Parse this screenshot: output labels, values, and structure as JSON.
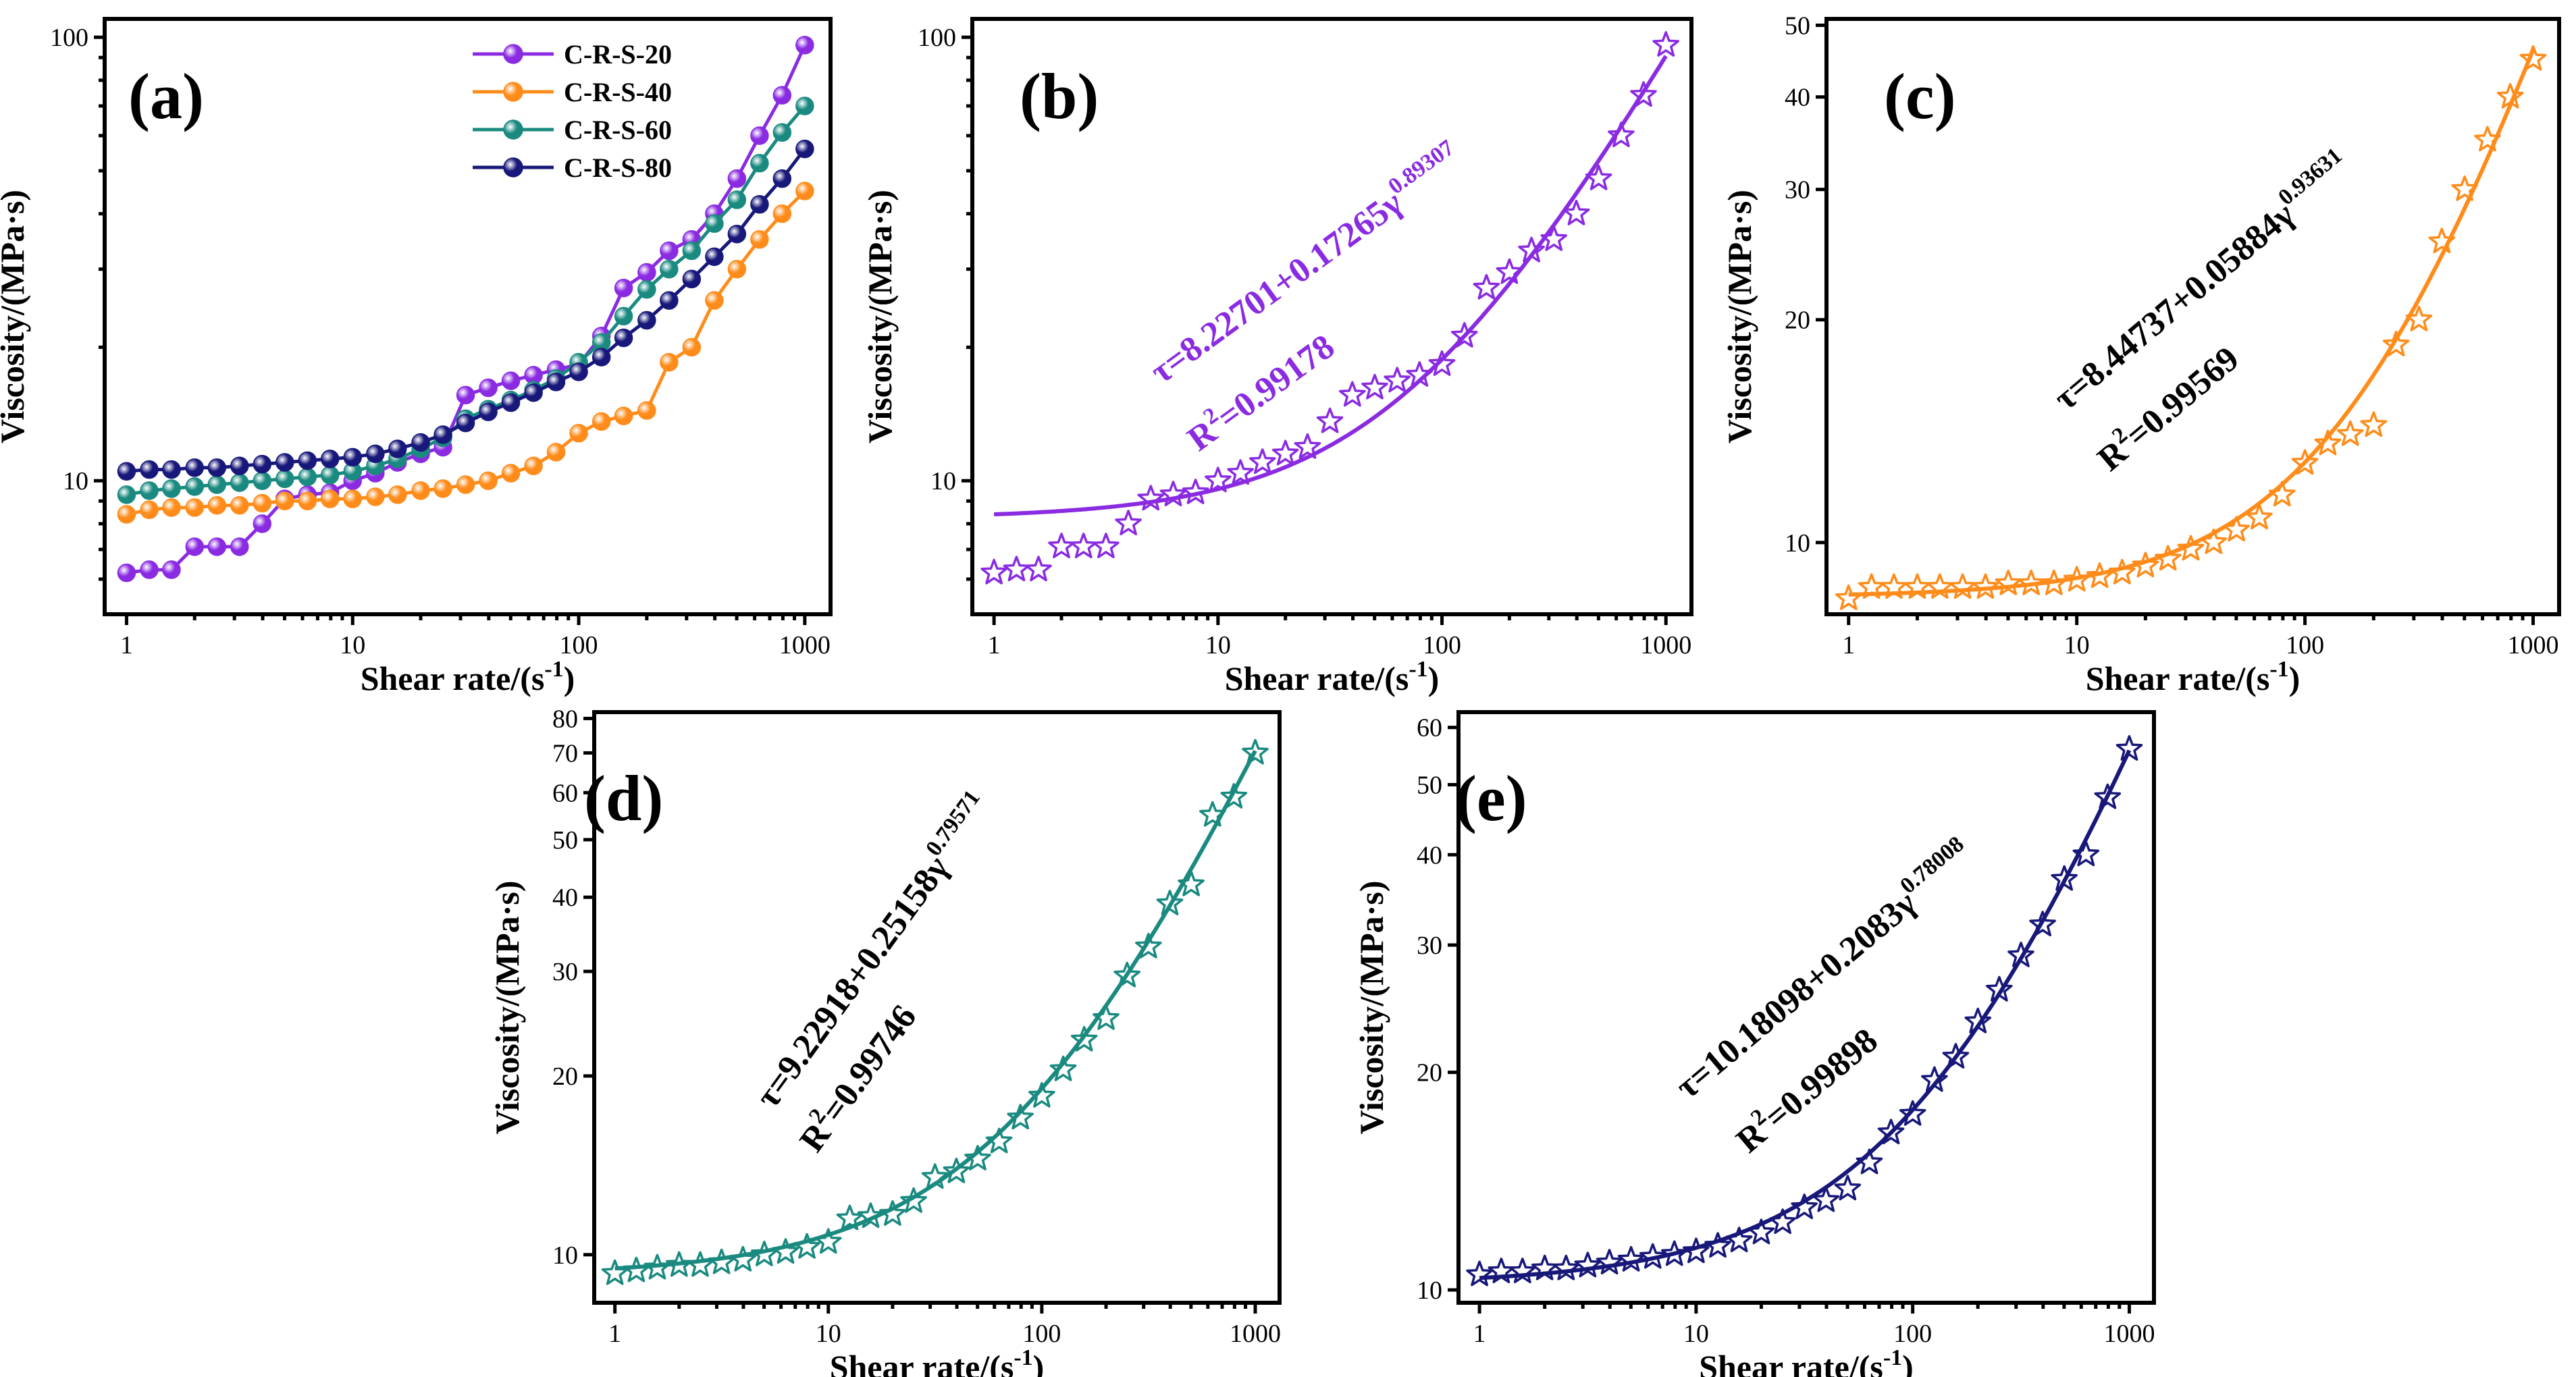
{
  "colors": {
    "C-R-S-20": "#8a2be2",
    "C-R-S-40": "#ff8c1a",
    "C-R-S-60": "#1a8a80",
    "C-R-S-80": "#18187a"
  },
  "chart_data": [
    {
      "id": "a",
      "type": "line",
      "panel_label": "(a)",
      "xlabel": "Shear rate/(s",
      "xlabel_sup": "-1",
      "xlabel_end": ")",
      "ylabel": "Viscosity/(MPa·s)",
      "xscale": "log",
      "yscale": "log",
      "xlim": [
        0.8,
        1300
      ],
      "ylim": [
        5,
        110
      ],
      "xticks": [
        1,
        10,
        100,
        1000
      ],
      "xtick_labels": [
        "1",
        "10",
        "100",
        "1000"
      ],
      "yticks": [
        10,
        100
      ],
      "ytick_labels": [
        "10",
        "100"
      ],
      "legend_position": "top-center",
      "x": [
        1,
        1.26,
        1.58,
        2,
        2.51,
        3.16,
        3.98,
        5.01,
        6.31,
        7.94,
        10,
        12.6,
        15.8,
        20,
        25.1,
        31.6,
        39.8,
        50.1,
        63.1,
        79.4,
        100,
        126,
        158,
        200,
        251,
        316,
        398,
        501,
        631,
        794,
        1000
      ],
      "series": [
        {
          "name": "C-R-S-20",
          "color_key": "C-R-S-20",
          "marker": "ball",
          "values": [
            6.2,
            6.3,
            6.3,
            7.1,
            7.1,
            7.1,
            8.0,
            9.1,
            9.3,
            9.4,
            10.0,
            10.4,
            11.0,
            11.5,
            11.9,
            15.6,
            16.2,
            16.8,
            17.3,
            17.8,
            18.3,
            21.2,
            27.2,
            29.5,
            33.0,
            35.0,
            40.0,
            48.0,
            60.0,
            74.0,
            96.0
          ]
        },
        {
          "name": "C-R-S-40",
          "color_key": "C-R-S-40",
          "marker": "ball",
          "values": [
            8.4,
            8.6,
            8.7,
            8.7,
            8.8,
            8.8,
            8.9,
            9.0,
            9.0,
            9.1,
            9.1,
            9.2,
            9.3,
            9.5,
            9.6,
            9.8,
            10.0,
            10.4,
            10.8,
            11.6,
            12.8,
            13.6,
            14.0,
            14.4,
            18.5,
            20.0,
            25.5,
            30.0,
            35.0,
            40.0,
            45.0
          ]
        },
        {
          "name": "C-R-S-60",
          "color_key": "C-R-S-60",
          "marker": "ball",
          "values": [
            9.3,
            9.5,
            9.6,
            9.7,
            9.8,
            9.9,
            10.0,
            10.1,
            10.2,
            10.3,
            10.5,
            10.8,
            11.2,
            11.8,
            12.5,
            13.8,
            14.5,
            15.2,
            16.0,
            17.0,
            18.5,
            20.5,
            23.5,
            27.0,
            30.0,
            33.0,
            38.0,
            43.0,
            52.0,
            61.0,
            70.0
          ]
        },
        {
          "name": "C-R-S-80",
          "color_key": "C-R-S-80",
          "marker": "ball",
          "values": [
            10.5,
            10.6,
            10.6,
            10.7,
            10.7,
            10.8,
            10.9,
            11.0,
            11.1,
            11.2,
            11.3,
            11.5,
            11.8,
            12.2,
            12.7,
            13.5,
            14.3,
            15.0,
            15.8,
            16.7,
            17.6,
            19.0,
            21.0,
            23.0,
            25.5,
            28.5,
            32.0,
            36.0,
            42.0,
            48.0,
            56.0
          ]
        }
      ]
    },
    {
      "id": "b",
      "type": "scatter",
      "panel_label": "(b)",
      "xlabel": "Shear rate/(s",
      "xlabel_sup": "-1",
      "xlabel_end": ")",
      "ylabel": "Viscosity/(MPa·s)",
      "xscale": "log",
      "yscale": "log",
      "xlim": [
        0.8,
        1300
      ],
      "ylim": [
        5,
        110
      ],
      "xticks": [
        1,
        10,
        100,
        1000
      ],
      "xtick_labels": [
        "1",
        "10",
        "100",
        "1000"
      ],
      "yticks": [
        10,
        100
      ],
      "ytick_labels": [
        "10",
        "100"
      ],
      "color_key": "C-R-S-20",
      "equation": {
        "prefix": "τ=8.22701+0.17265γ",
        "exponent": "0.89307",
        "r2_prefix": "R",
        "r2_sup": "2",
        "r2_value": "=0.99178"
      },
      "fit": {
        "a": 8.22701,
        "b": 0.17265,
        "n": 0.89307
      },
      "x": [
        1,
        1.26,
        1.58,
        2,
        2.51,
        3.16,
        3.98,
        5.01,
        6.31,
        7.94,
        10,
        12.6,
        15.8,
        20,
        25.1,
        31.6,
        39.8,
        50.1,
        63.1,
        79.4,
        100,
        126,
        158,
        200,
        251,
        316,
        398,
        501,
        631,
        794,
        1000
      ],
      "values": [
        6.2,
        6.3,
        6.3,
        7.1,
        7.1,
        7.1,
        8.0,
        9.1,
        9.3,
        9.4,
        10.0,
        10.4,
        11.0,
        11.5,
        11.9,
        13.6,
        15.6,
        16.2,
        16.8,
        17.3,
        18.3,
        21.2,
        27.2,
        29.5,
        33.0,
        35.0,
        40.0,
        48.0,
        60.0,
        74.0,
        96.0
      ]
    },
    {
      "id": "c",
      "type": "scatter",
      "panel_label": "(c)",
      "xlabel": "Shear rate/(s",
      "xlabel_sup": "-1",
      "xlabel_end": ")",
      "ylabel": "Viscosity/(MPa·s)",
      "xscale": "log",
      "yscale": "log",
      "xlim": [
        0.8,
        1300
      ],
      "ylim": [
        8.0,
        51
      ],
      "xticks": [
        1,
        10,
        100,
        1000
      ],
      "xtick_labels": [
        "1",
        "10",
        "100",
        "1000"
      ],
      "yticks": [
        10,
        20,
        30,
        40,
        50
      ],
      "ytick_labels": [
        "10",
        "20",
        "30",
        "40",
        "50"
      ],
      "color_key": "C-R-S-40",
      "equation": {
        "prefix": "τ=8.44737+0.05884γ",
        "exponent": "0.93631",
        "r2_prefix": "R",
        "r2_sup": "2",
        "r2_value": "=0.99569"
      },
      "fit": {
        "a": 8.44737,
        "b": 0.05884,
        "n": 0.93631
      },
      "x": [
        1,
        1.26,
        1.58,
        2,
        2.51,
        3.16,
        3.98,
        5.01,
        6.31,
        7.94,
        10,
        12.6,
        15.8,
        20,
        25.1,
        31.6,
        39.8,
        50.1,
        63.1,
        79.4,
        100,
        126,
        158,
        200,
        251,
        316,
        398,
        501,
        631,
        794,
        1000
      ],
      "values": [
        8.4,
        8.7,
        8.7,
        8.7,
        8.7,
        8.7,
        8.7,
        8.8,
        8.8,
        8.8,
        8.9,
        9.0,
        9.1,
        9.3,
        9.5,
        9.8,
        10.0,
        10.4,
        10.8,
        11.6,
        12.8,
        13.6,
        14.0,
        14.4,
        18.5,
        20.0,
        25.5,
        30.0,
        35.0,
        40.0,
        45.0
      ]
    },
    {
      "id": "d",
      "type": "scatter",
      "panel_label": "(d)",
      "xlabel": "Shear rate/(s",
      "xlabel_sup": "-1",
      "xlabel_end": ")",
      "ylabel": "Viscosity/(MPa·s)",
      "xscale": "log",
      "yscale": "log",
      "xlim": [
        0.8,
        1300
      ],
      "ylim": [
        8.3,
        82
      ],
      "xticks": [
        1,
        10,
        100,
        1000
      ],
      "xtick_labels": [
        "1",
        "10",
        "100",
        "1000"
      ],
      "yticks": [
        10,
        20,
        30,
        40,
        50,
        60,
        70,
        80
      ],
      "ytick_labels": [
        "10",
        "20",
        "30",
        "40",
        "50",
        "60",
        "70",
        "80"
      ],
      "color_key": "C-R-S-60",
      "equation": {
        "prefix": "τ=9.22918+0.25158γ",
        "exponent": "0.79571",
        "r2_prefix": "R",
        "r2_sup": "2",
        "r2_value": "=0.99746"
      },
      "fit": {
        "a": 9.22918,
        "b": 0.25158,
        "n": 0.79571
      },
      "x": [
        1,
        1.26,
        1.58,
        2,
        2.51,
        3.16,
        3.98,
        5.01,
        6.31,
        7.94,
        10,
        12.6,
        15.8,
        20,
        25.1,
        31.6,
        39.8,
        50.1,
        63.1,
        79.4,
        100,
        126,
        158,
        200,
        251,
        316,
        398,
        501,
        631,
        794,
        1000
      ],
      "values": [
        9.3,
        9.4,
        9.5,
        9.6,
        9.6,
        9.7,
        9.8,
        10.0,
        10.1,
        10.3,
        10.5,
        11.5,
        11.6,
        11.7,
        12.3,
        13.5,
        13.8,
        14.5,
        15.5,
        17.0,
        18.5,
        20.5,
        23.0,
        25.0,
        29.5,
        33.0,
        39.0,
        42.0,
        55.0,
        59.0,
        70.0
      ]
    },
    {
      "id": "e",
      "type": "scatter",
      "panel_label": "(e)",
      "xlabel": "Shear rate/(s",
      "xlabel_sup": "-1",
      "xlabel_end": ")",
      "ylabel": "Viscosity/(MPa·s)",
      "xscale": "log",
      "yscale": "log",
      "xlim": [
        0.8,
        1300
      ],
      "ylim": [
        9.6,
        63
      ],
      "xticks": [
        1,
        10,
        100,
        1000
      ],
      "xtick_labels": [
        "1",
        "10",
        "100",
        "1000"
      ],
      "yticks": [
        10,
        20,
        30,
        40,
        50,
        60
      ],
      "ytick_labels": [
        "10",
        "20",
        "30",
        "40",
        "50",
        "60"
      ],
      "color_key": "C-R-S-80",
      "equation": {
        "prefix": "τ=10.18098+0.2083γ",
        "exponent": "0.78008",
        "r2_prefix": "R",
        "r2_sup": "2",
        "r2_value": "=0.99898"
      },
      "fit": {
        "a": 10.18098,
        "b": 0.2083,
        "n": 0.78008
      },
      "x": [
        1,
        1.26,
        1.58,
        2,
        2.51,
        3.16,
        3.98,
        5.01,
        6.31,
        7.94,
        10,
        12.6,
        15.8,
        20,
        25.1,
        31.6,
        39.8,
        50.1,
        63.1,
        79.4,
        100,
        126,
        158,
        200,
        251,
        316,
        398,
        501,
        631,
        794,
        1000
      ],
      "values": [
        10.5,
        10.6,
        10.6,
        10.7,
        10.7,
        10.8,
        10.9,
        11.0,
        11.1,
        11.2,
        11.3,
        11.5,
        11.7,
        12.0,
        12.4,
        13.0,
        13.3,
        13.8,
        15.0,
        16.5,
        17.5,
        19.5,
        21.0,
        23.5,
        26.0,
        29.0,
        32.0,
        37.0,
        40.0,
        48.0,
        56.0
      ]
    }
  ]
}
